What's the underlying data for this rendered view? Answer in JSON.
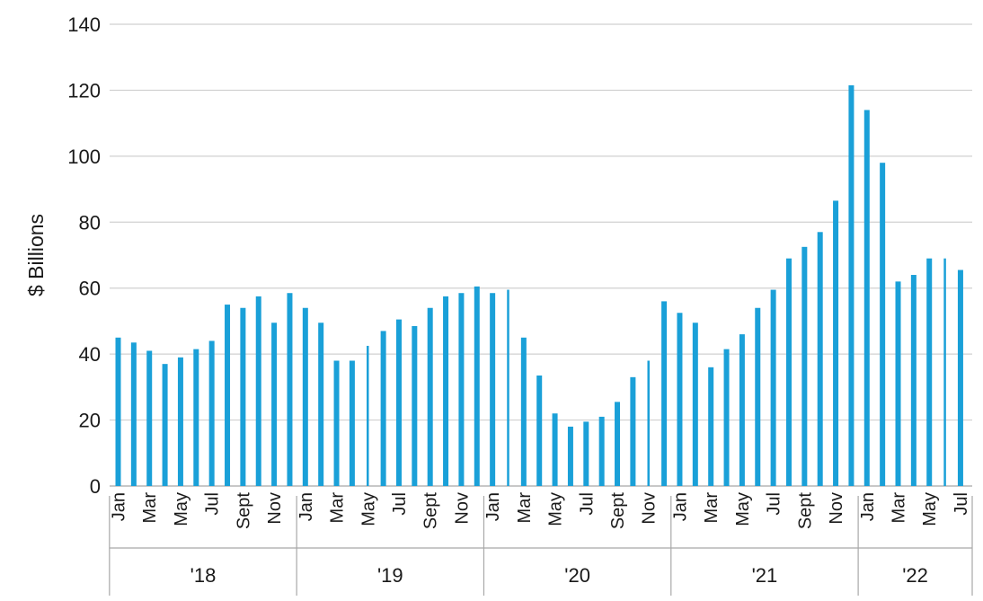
{
  "chart_data": {
    "type": "bar",
    "ylabel": "$ Billions",
    "xlabel": "",
    "ylim": [
      0,
      140
    ],
    "yticks": [
      0,
      20,
      40,
      60,
      80,
      100,
      120,
      140
    ],
    "grid": true,
    "bar_color": "#1aa0d8",
    "grid_color": "#d0d0d0",
    "axis_color": "#a8a8a8",
    "month_tick_labels": [
      "Jan",
      "",
      "Mar",
      "",
      "May",
      "",
      "Jul",
      "",
      "Sept",
      "",
      "Nov",
      ""
    ],
    "month_tick_labels_last_year": [
      "Jan",
      "",
      "Mar",
      "",
      "May",
      "",
      "Jul"
    ],
    "years": [
      {
        "label": "'18",
        "values": [
          45,
          43.5,
          41,
          37,
          39,
          41.5,
          44,
          55,
          54,
          57.5,
          49.5,
          58.5
        ]
      },
      {
        "label": "'19",
        "values": [
          54,
          49.5,
          38,
          38,
          42.5,
          47,
          50.5,
          48.5,
          54,
          57.5,
          58.5,
          60.5
        ]
      },
      {
        "label": "'20",
        "values": [
          58.5,
          59.5,
          45,
          33.5,
          22,
          18,
          19.5,
          21,
          25.5,
          33,
          38,
          56
        ]
      },
      {
        "label": "'21",
        "values": [
          52.5,
          49.5,
          36,
          41.5,
          46,
          54,
          59.5,
          69,
          72.5,
          77,
          86.5,
          121.5
        ]
      },
      {
        "label": "'22",
        "values": [
          114,
          98,
          62,
          64,
          69,
          69,
          65.5
        ]
      }
    ],
    "thin_bars": [
      {
        "year": 1,
        "month": 4
      },
      {
        "year": 2,
        "month": 1
      },
      {
        "year": 2,
        "month": 10
      },
      {
        "year": 4,
        "month": 5
      }
    ]
  }
}
